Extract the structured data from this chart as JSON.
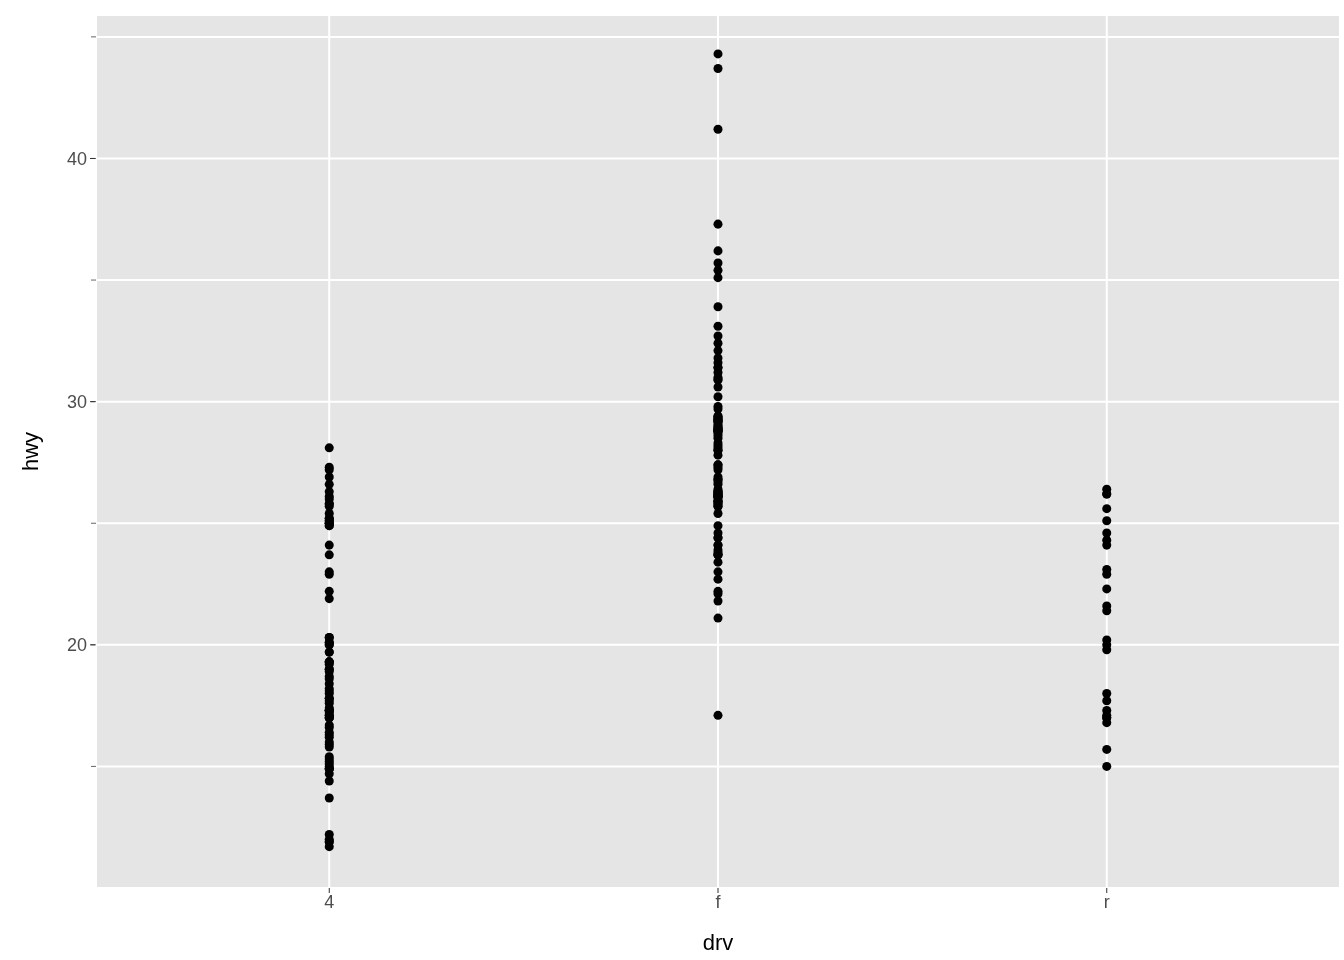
{
  "chart_data": {
    "type": "scatter",
    "xlabel": "drv",
    "ylabel": "hwy",
    "marker": "circle",
    "grid": true,
    "categories": [
      "4",
      "f",
      "r"
    ],
    "ylim": [
      10.0,
      45.9
    ],
    "yticks": [
      {
        "value": 15,
        "label": null
      },
      20,
      {
        "value": 25,
        "label": null
      },
      30,
      {
        "value": 35,
        "label": null
      },
      40,
      {
        "value": 45,
        "label": null
      }
    ],
    "series": [
      {
        "color": "#000000",
        "x": [
          "4",
          "4",
          "4",
          "4",
          "4",
          "4",
          "4",
          "4",
          "4",
          "4",
          "4",
          "4",
          "4",
          "4",
          "4",
          "4",
          "4",
          "4",
          "4",
          "4",
          "4",
          "4",
          "4",
          "4",
          "4",
          "4",
          "4",
          "4",
          "4",
          "4",
          "4",
          "4",
          "4",
          "4",
          "4",
          "4",
          "4",
          "4",
          "4",
          "4",
          "4",
          "4",
          "4",
          "4",
          "4",
          "4",
          "4",
          "4",
          "4",
          "4",
          "4",
          "4",
          "4",
          "4",
          "4",
          "4",
          "4",
          "4",
          "4",
          "4",
          "4",
          "4",
          "4",
          "4",
          "4",
          "4",
          "4",
          "4",
          "4",
          "4",
          "4",
          "4",
          "4",
          "4",
          "4",
          "4",
          "4",
          "4",
          "4",
          "4",
          "4",
          "4",
          "4",
          "4",
          "4",
          "4",
          "4",
          "f",
          "f",
          "f",
          "f",
          "f",
          "f",
          "f",
          "f",
          "f",
          "f",
          "f",
          "f",
          "f",
          "f",
          "f",
          "f",
          "f",
          "f",
          "f",
          "f",
          "f",
          "f",
          "f",
          "f",
          "f",
          "f",
          "f",
          "f",
          "f",
          "f",
          "f",
          "f",
          "f",
          "f",
          "f",
          "f",
          "f",
          "f",
          "f",
          "f",
          "f",
          "f",
          "f",
          "f",
          "f",
          "f",
          "f",
          "f",
          "f",
          "f",
          "f",
          "f",
          "f",
          "f",
          "f",
          "f",
          "f",
          "f",
          "f",
          "f",
          "f",
          "f",
          "f",
          "f",
          "f",
          "f",
          "f",
          "f",
          "f",
          "f",
          "f",
          "f",
          "f",
          "f",
          "f",
          "f",
          "f",
          "f",
          "f",
          "f",
          "f",
          "f",
          "f",
          "f",
          "f",
          "f",
          "f",
          "f",
          "f",
          "f",
          "f",
          "f",
          "f",
          "f",
          "f",
          "f",
          "f",
          "f",
          "f",
          "f",
          "f",
          "f",
          "f",
          "f",
          "r",
          "r",
          "r",
          "r",
          "r",
          "r",
          "r",
          "r",
          "r",
          "r",
          "r",
          "r",
          "r",
          "r",
          "r",
          "r",
          "r",
          "r",
          "r",
          "r",
          "r",
          "r",
          "r",
          "r",
          "r"
        ],
        "values": [
          24.1,
          22.2,
          20.0,
          19.7,
          18.1,
          17.0,
          17.2,
          17.0,
          19.3,
          16.0,
          15.8,
          15.4,
          15.3,
          15.1,
          17.4,
          14.7,
          13.7,
          19.3,
          18.9,
          16.7,
          25.2,
          25.2,
          20.3,
          17.3,
          14.9,
          16.4,
          14.9,
          15.0,
          25.4,
          20.1,
          17.3,
          19.3,
          23.0,
          25.0,
          18.7,
          25.0,
          26.1,
          18.2,
          19.0,
          26.9,
          24.9,
          26.6,
          25.8,
          14.4,
          11.7,
          11.9,
          16.3,
          17.8,
          24.9,
          19.0,
          20.0,
          19.7,
          25.0,
          27.3,
          27.2,
          18.6,
          17.8,
          16.6,
          25.7,
          26.0,
          17.0,
          17.1,
          23.7,
          17.6,
          19.2,
          18.4,
          16.2,
          15.9,
          17.3,
          14.9,
          17.3,
          25.8,
          21.9,
          12.2,
          26.3,
          12.0,
          20.1,
          18.0,
          11.9,
          15.2,
          17.7,
          17.1,
          20.3,
          25.1,
          28.1,
          25.1,
          22.9,
          44.3,
          43.7,
          41.2,
          37.3,
          35.7,
          36.2,
          35.4,
          35.1,
          33.9,
          33.1,
          32.7,
          32.4,
          32.1,
          31.8,
          31.6,
          31.4,
          31.4,
          31.2,
          31.0,
          30.9,
          30.9,
          30.6,
          30.2,
          29.3,
          29.4,
          29.4,
          28.8,
          28.8,
          28.8,
          28.8,
          28.9,
          29.2,
          29.2,
          28.9,
          29.8,
          29.7,
          29.1,
          29.3,
          29.0,
          28.9,
          29.2,
          29.3,
          29.2,
          29.0,
          28.8,
          27.8,
          28.1,
          28.0,
          28.0,
          28.7,
          28.3,
          28.6,
          28.2,
          28.5,
          27.4,
          27.4,
          27.2,
          27.3,
          26.7,
          26.8,
          26.9,
          26.6,
          26.8,
          26.4,
          26.1,
          25.9,
          26.3,
          26.2,
          26.2,
          26.0,
          26.2,
          26.1,
          26.2,
          26.1,
          25.7,
          26.1,
          25.7,
          26.3,
          25.9,
          26.3,
          25.8,
          25.8,
          26.1,
          25.4,
          25.9,
          23.7,
          24.1,
          22.2,
          23.0,
          22.7,
          23.8,
          24.6,
          24.4,
          24.4,
          24.9,
          24.1,
          23.7,
          23.9,
          23.7,
          23.4,
          22.1,
          21.8,
          21.1,
          17.1,
          24.3,
          18.0,
          20.0,
          25.1,
          19.8,
          20.2,
          17.0,
          21.6,
          16.8,
          26.2,
          15.0,
          23.1,
          15.7,
          26.2,
          17.3,
          21.4,
          17.0,
          17.1,
          22.9,
          24.1,
          24.6,
          25.6,
          26.4,
          22.3,
          17.7
        ]
      }
    ]
  }
}
